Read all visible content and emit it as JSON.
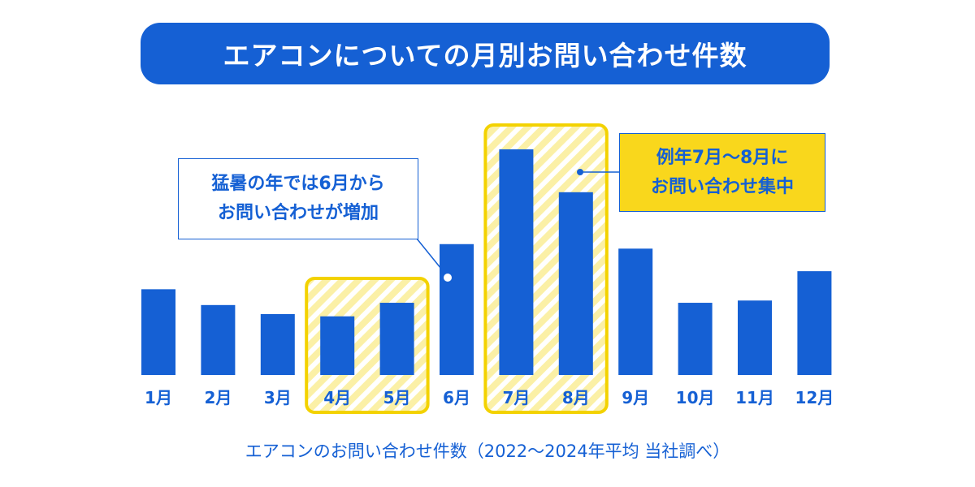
{
  "title": "エアコンについての月別お問い合わせ件数",
  "colors": {
    "bar": "#1560d4",
    "title_bg": "#1560d4",
    "highlight_border": "#f3d200",
    "highlight_fill": "#fbf0a6",
    "callout_fill": "#f9d71c",
    "text": "#1560d4"
  },
  "callouts": {
    "june": [
      "猛暑の年では6月から",
      "お問い合わせが増加"
    ],
    "peak": [
      "例年7月～8月に",
      "お問い合わせ集中"
    ]
  },
  "chart_data": {
    "type": "bar",
    "categories": [
      "1月",
      "2月",
      "3月",
      "4月",
      "5月",
      "6月",
      "7月",
      "8月",
      "9月",
      "10月",
      "11月",
      "12月"
    ],
    "values": [
      38,
      31,
      27,
      26,
      32,
      58,
      100,
      81,
      56,
      32,
      33,
      46
    ],
    "ylim": [
      0,
      100
    ],
    "grid": false,
    "title": "エアコンについての月別お問い合わせ件数",
    "xlabel": "",
    "ylabel": "",
    "highlighted_groups": [
      [
        "4月",
        "5月"
      ],
      [
        "7月",
        "8月"
      ]
    ]
  },
  "footnote": "エアコンのお問い合わせ件数（2022～2024年平均 当社調べ）"
}
